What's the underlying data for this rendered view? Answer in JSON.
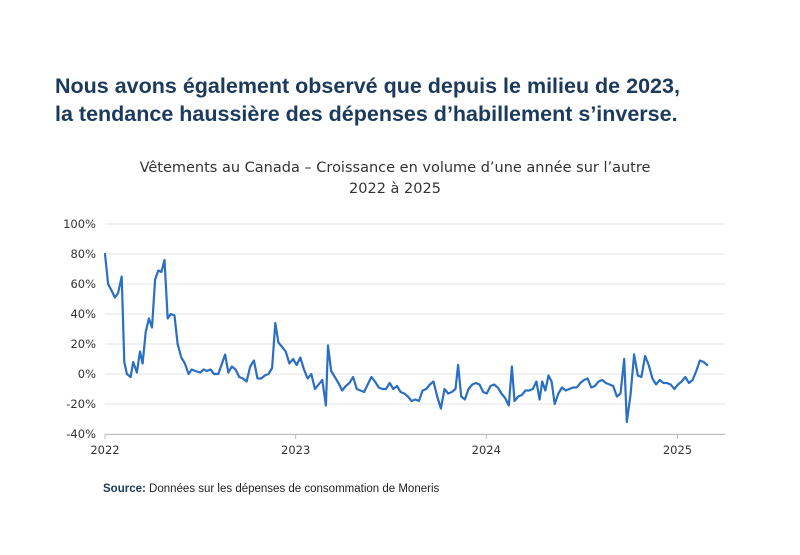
{
  "headline": {
    "line1": "Nous avons également observé que depuis le milieu de 2023,",
    "line2": "la tendance haussière des dépenses d’habillement s’inverse."
  },
  "source": {
    "label": "Source:",
    "text": "Données sur les dépenses de consommation de Moneris"
  },
  "colors": {
    "line": "#2a6fc2",
    "headline": "#1b3a5c",
    "grid": "#e3e3e3"
  },
  "chart_data": {
    "type": "line",
    "title": "Vêtements au Canada – Croissance en volume d’une année sur l’autre",
    "subtitle": "2022 à 2025",
    "xlabel": "",
    "ylabel": "",
    "ylim": [
      -40,
      100
    ],
    "yticks": [
      100,
      80,
      60,
      40,
      20,
      0,
      -20,
      -40
    ],
    "ytick_labels": [
      "100%",
      "80%",
      "60%",
      "40%",
      "20%",
      "0%",
      "-20%",
      "-40%"
    ],
    "xlim": [
      "2022-01-01",
      "2025-04-02"
    ],
    "xticks": [
      {
        "x": "2022-01-01",
        "label": "2022"
      },
      {
        "x": "2023-01-01",
        "label": "2023"
      },
      {
        "x": "2024-01-01",
        "label": "2024"
      },
      {
        "x": "2025-01-01",
        "label": "2025"
      }
    ],
    "grid": true,
    "legend": "none",
    "series": [
      {
        "name": "",
        "points": [
          [
            "2022-01-01",
            80
          ],
          [
            "2022-01-07",
            60
          ],
          [
            "2022-01-13",
            56
          ],
          [
            "2022-01-20",
            51
          ],
          [
            "2022-01-26",
            54
          ],
          [
            "2022-02-02",
            65
          ],
          [
            "2022-02-07",
            8
          ],
          [
            "2022-02-12",
            0
          ],
          [
            "2022-02-19",
            -2
          ],
          [
            "2022-02-24",
            8
          ],
          [
            "2022-03-03",
            1
          ],
          [
            "2022-03-09",
            15
          ],
          [
            "2022-03-14",
            7
          ],
          [
            "2022-03-20",
            28
          ],
          [
            "2022-03-26",
            37
          ],
          [
            "2022-04-01",
            31
          ],
          [
            "2022-04-07",
            63
          ],
          [
            "2022-04-13",
            69
          ],
          [
            "2022-04-19",
            68
          ],
          [
            "2022-04-25",
            76
          ],
          [
            "2022-05-01",
            37
          ],
          [
            "2022-05-07",
            40
          ],
          [
            "2022-05-14",
            39
          ],
          [
            "2022-05-20",
            20
          ],
          [
            "2022-05-27",
            11
          ],
          [
            "2022-06-03",
            7
          ],
          [
            "2022-06-10",
            0
          ],
          [
            "2022-06-16",
            3
          ],
          [
            "2022-06-23",
            2
          ],
          [
            "2022-07-02",
            1
          ],
          [
            "2022-07-09",
            3
          ],
          [
            "2022-07-15",
            2
          ],
          [
            "2022-07-22",
            3
          ],
          [
            "2022-07-29",
            0
          ],
          [
            "2022-08-06",
            0
          ],
          [
            "2022-08-13",
            7
          ],
          [
            "2022-08-19",
            13
          ],
          [
            "2022-08-25",
            1
          ],
          [
            "2022-09-01",
            5
          ],
          [
            "2022-09-08",
            3
          ],
          [
            "2022-09-15",
            -2
          ],
          [
            "2022-09-22",
            -3
          ],
          [
            "2022-09-29",
            -5
          ],
          [
            "2022-10-06",
            5
          ],
          [
            "2022-10-13",
            9
          ],
          [
            "2022-10-20",
            -3
          ],
          [
            "2022-10-27",
            -3
          ],
          [
            "2022-11-03",
            -1
          ],
          [
            "2022-11-10",
            0
          ],
          [
            "2022-11-17",
            4
          ],
          [
            "2022-11-23",
            34
          ],
          [
            "2022-11-29",
            21
          ],
          [
            "2022-12-06",
            18
          ],
          [
            "2022-12-13",
            15
          ],
          [
            "2022-12-20",
            7
          ],
          [
            "2022-12-27",
            10
          ],
          [
            "2023-01-03",
            6
          ],
          [
            "2023-01-10",
            11
          ],
          [
            "2023-01-17",
            3
          ],
          [
            "2023-01-24",
            -3
          ],
          [
            "2023-01-31",
            0
          ],
          [
            "2023-02-07",
            -10
          ],
          [
            "2023-02-14",
            -7
          ],
          [
            "2023-02-21",
            -4
          ],
          [
            "2023-02-28",
            -21
          ],
          [
            "2023-03-04",
            19
          ],
          [
            "2023-03-10",
            2
          ],
          [
            "2023-03-17",
            -2
          ],
          [
            "2023-03-24",
            -6
          ],
          [
            "2023-03-31",
            -11
          ],
          [
            "2023-04-07",
            -8
          ],
          [
            "2023-04-14",
            -6
          ],
          [
            "2023-04-21",
            -2
          ],
          [
            "2023-04-28",
            -10
          ],
          [
            "2023-05-05",
            -11
          ],
          [
            "2023-05-12",
            -12
          ],
          [
            "2023-05-19",
            -7
          ],
          [
            "2023-05-26",
            -2
          ],
          [
            "2023-06-02",
            -5
          ],
          [
            "2023-06-09",
            -9
          ],
          [
            "2023-06-16",
            -10
          ],
          [
            "2023-06-23",
            -10
          ],
          [
            "2023-06-30",
            -6
          ],
          [
            "2023-07-07",
            -10
          ],
          [
            "2023-07-14",
            -8
          ],
          [
            "2023-07-21",
            -12
          ],
          [
            "2023-07-28",
            -13
          ],
          [
            "2023-08-04",
            -15
          ],
          [
            "2023-08-11",
            -18
          ],
          [
            "2023-08-18",
            -17
          ],
          [
            "2023-08-25",
            -18
          ],
          [
            "2023-09-01",
            -11
          ],
          [
            "2023-09-08",
            -10
          ],
          [
            "2023-09-15",
            -7
          ],
          [
            "2023-09-22",
            -5
          ],
          [
            "2023-09-29",
            -15
          ],
          [
            "2023-10-06",
            -23
          ],
          [
            "2023-10-13",
            -10
          ],
          [
            "2023-10-20",
            -13
          ],
          [
            "2023-10-27",
            -12
          ],
          [
            "2023-11-03",
            -10
          ],
          [
            "2023-11-08",
            6
          ],
          [
            "2023-11-14",
            -15
          ],
          [
            "2023-11-21",
            -17
          ],
          [
            "2023-11-28",
            -10
          ],
          [
            "2023-12-05",
            -7
          ],
          [
            "2023-12-12",
            -6
          ],
          [
            "2023-12-19",
            -7
          ],
          [
            "2023-12-26",
            -12
          ],
          [
            "2024-01-02",
            -13
          ],
          [
            "2024-01-09",
            -8
          ],
          [
            "2024-01-16",
            -7
          ],
          [
            "2024-01-23",
            -9
          ],
          [
            "2024-01-30",
            -13
          ],
          [
            "2024-02-06",
            -16
          ],
          [
            "2024-02-13",
            -21
          ],
          [
            "2024-02-19",
            5
          ],
          [
            "2024-02-24",
            -18
          ],
          [
            "2024-03-02",
            -15
          ],
          [
            "2024-03-09",
            -14
          ],
          [
            "2024-03-16",
            -11
          ],
          [
            "2024-03-23",
            -11
          ],
          [
            "2024-03-30",
            -10
          ],
          [
            "2024-04-06",
            -5
          ],
          [
            "2024-04-12",
            -17
          ],
          [
            "2024-04-17",
            -5
          ],
          [
            "2024-04-23",
            -11
          ],
          [
            "2024-04-29",
            -1
          ],
          [
            "2024-05-05",
            -5
          ],
          [
            "2024-05-11",
            -20
          ],
          [
            "2024-05-18",
            -13
          ],
          [
            "2024-05-25",
            -9
          ],
          [
            "2024-06-01",
            -11
          ],
          [
            "2024-06-08",
            -10
          ],
          [
            "2024-06-15",
            -9
          ],
          [
            "2024-06-22",
            -9
          ],
          [
            "2024-06-29",
            -6
          ],
          [
            "2024-07-06",
            -4
          ],
          [
            "2024-07-13",
            -3
          ],
          [
            "2024-07-20",
            -9
          ],
          [
            "2024-07-27",
            -8
          ],
          [
            "2024-08-03",
            -5
          ],
          [
            "2024-08-10",
            -4
          ],
          [
            "2024-08-17",
            -6
          ],
          [
            "2024-08-24",
            -7
          ],
          [
            "2024-08-31",
            -8
          ],
          [
            "2024-09-07",
            -15
          ],
          [
            "2024-09-14",
            -13
          ],
          [
            "2024-09-21",
            10
          ],
          [
            "2024-09-26",
            -32
          ],
          [
            "2024-10-03",
            -14
          ],
          [
            "2024-10-10",
            13
          ],
          [
            "2024-10-17",
            -1
          ],
          [
            "2024-10-24",
            -2
          ],
          [
            "2024-10-31",
            12
          ],
          [
            "2024-11-07",
            6
          ],
          [
            "2024-11-14",
            -3
          ],
          [
            "2024-11-21",
            -7
          ],
          [
            "2024-11-28",
            -4
          ],
          [
            "2024-12-05",
            -6
          ],
          [
            "2024-12-12",
            -6
          ],
          [
            "2024-12-19",
            -7
          ],
          [
            "2024-12-26",
            -10
          ],
          [
            "2025-01-02",
            -7
          ],
          [
            "2025-01-09",
            -5
          ],
          [
            "2025-01-16",
            -2
          ],
          [
            "2025-01-23",
            -6
          ],
          [
            "2025-01-30",
            -4
          ],
          [
            "2025-02-06",
            2
          ],
          [
            "2025-02-13",
            9
          ],
          [
            "2025-02-20",
            8
          ],
          [
            "2025-02-27",
            6
          ]
        ]
      }
    ]
  }
}
